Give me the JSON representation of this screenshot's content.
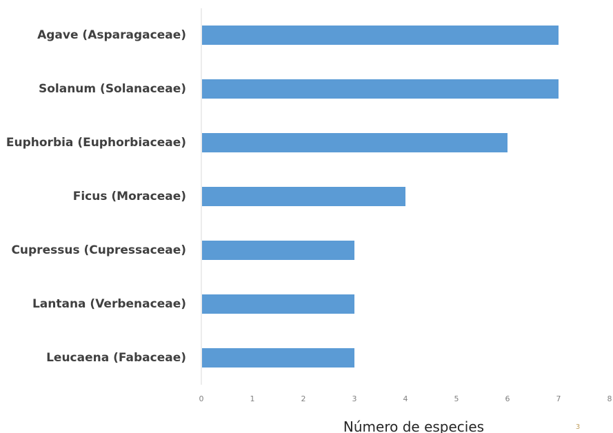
{
  "chart_data": {
    "type": "bar",
    "orientation": "horizontal",
    "categories": [
      "Agave (Asparagaceae)",
      "Solanum (Solanaceae)",
      "Euphorbia (Euphorbiaceae)",
      "Ficus (Moraceae)",
      "Cupressus (Cupressaceae)",
      "Lantana (Verbenaceae)",
      "Leucaena (Fabaceae)"
    ],
    "values": [
      7,
      7,
      6,
      4,
      3,
      3,
      3
    ],
    "xlabel": "Número de especies",
    "ylabel": "",
    "xlim": [
      0,
      8
    ],
    "xticks": [
      "0",
      "1",
      "2",
      "3",
      "4",
      "5",
      "6",
      "7",
      "8"
    ],
    "grid": false,
    "bar_color": "#5b9bd5",
    "axis_color": "#d9d9d9"
  },
  "page_number": "3"
}
